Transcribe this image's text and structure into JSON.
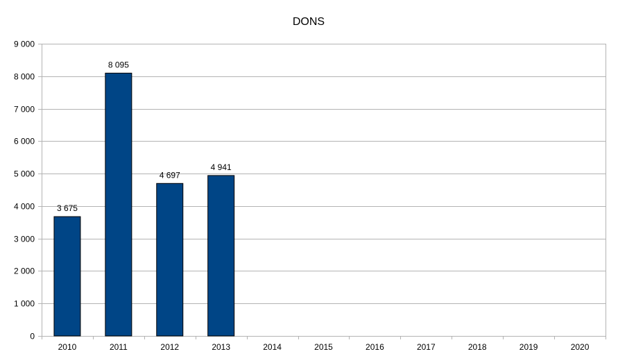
{
  "chart_data": {
    "type": "bar",
    "title": "DONS",
    "xlabel": "",
    "ylabel": "",
    "categories": [
      "2010",
      "2011",
      "2012",
      "2013",
      "2014",
      "2015",
      "2016",
      "2017",
      "2018",
      "2019",
      "2020"
    ],
    "values": [
      3675,
      8095,
      4697,
      4941,
      null,
      null,
      null,
      null,
      null,
      null,
      null
    ],
    "data_labels": [
      "3 675",
      "8 095",
      "4 697",
      "4 941",
      "",
      "",
      "",
      "",
      "",
      "",
      ""
    ],
    "ylim": [
      0,
      9000
    ],
    "y_ticks": [
      0,
      1000,
      2000,
      3000,
      4000,
      5000,
      6000,
      7000,
      8000,
      9000
    ],
    "y_tick_labels": [
      "0",
      "1 000",
      "2 000",
      "3 000",
      "4 000",
      "5 000",
      "6 000",
      "7 000",
      "8 000",
      "9 000"
    ],
    "grid": true,
    "legend": "none",
    "colors": {
      "bar_fill": "#004586",
      "bar_stroke": "#000000",
      "grid": "#b3b3b3",
      "axis": "#b3b3b3",
      "text": "#000000"
    }
  }
}
